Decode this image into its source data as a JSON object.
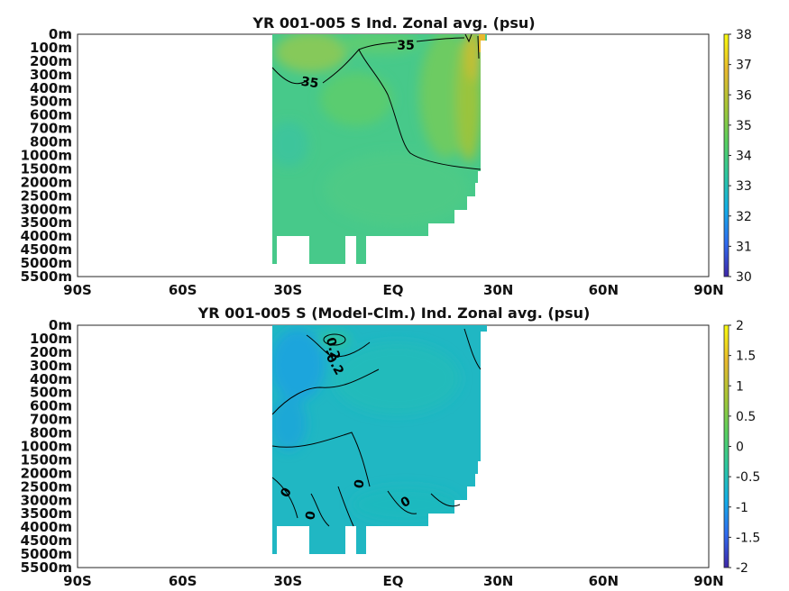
{
  "chart_data": [
    {
      "type": "heatmap",
      "title": "YR 001-005 S Ind. Zonal avg. (psu)",
      "x_ticks": [
        "90S",
        "60S",
        "30S",
        "EQ",
        "30N",
        "60N",
        "90N"
      ],
      "xlim": [
        -90,
        90
      ],
      "y_ticks": [
        "0m",
        "100m",
        "200m",
        "300m",
        "400m",
        "500m",
        "600m",
        "700m",
        "800m",
        "1000m",
        "1500m",
        "2000m",
        "2500m",
        "3000m",
        "3500m",
        "4000m",
        "4500m",
        "5000m",
        "5500m"
      ],
      "colorbar": {
        "min": 30,
        "max": 38,
        "ticks": [
          "30",
          "31",
          "32",
          "33",
          "34",
          "35",
          "36",
          "37",
          "38"
        ]
      },
      "contour_labels": [
        "35",
        "35"
      ],
      "colormap": [
        "#3e26a8",
        "#2f6cf0",
        "#13aee6",
        "#2dc79f",
        "#59cf5e",
        "#a6c635",
        "#e7b92e",
        "#f9fb0e"
      ]
    },
    {
      "type": "heatmap",
      "title": "YR 001-005 S (Model-Clm.) Ind. Zonal avg. (psu)",
      "x_ticks": [
        "90S",
        "60S",
        "30S",
        "EQ",
        "30N",
        "60N",
        "90N"
      ],
      "xlim": [
        -90,
        90
      ],
      "y_ticks": [
        "0m",
        "100m",
        "200m",
        "300m",
        "400m",
        "500m",
        "600m",
        "700m",
        "800m",
        "1000m",
        "1500m",
        "2000m",
        "2500m",
        "3000m",
        "3500m",
        "4000m",
        "4500m",
        "5000m",
        "5500m"
      ],
      "colorbar": {
        "min": -2,
        "max": 2,
        "ticks": [
          "-2",
          "-1.5",
          "-1",
          "-0.5",
          "0",
          "0.5",
          "1",
          "1.5",
          "2"
        ]
      },
      "contour_labels": [
        "0.2",
        "-0.2",
        "0",
        "0",
        "0",
        "0"
      ],
      "colormap": [
        "#3e26a8",
        "#2f6cf0",
        "#13aee6",
        "#2dc79f",
        "#59cf5e",
        "#a6c635",
        "#e7b92e",
        "#f9fb0e"
      ]
    }
  ]
}
